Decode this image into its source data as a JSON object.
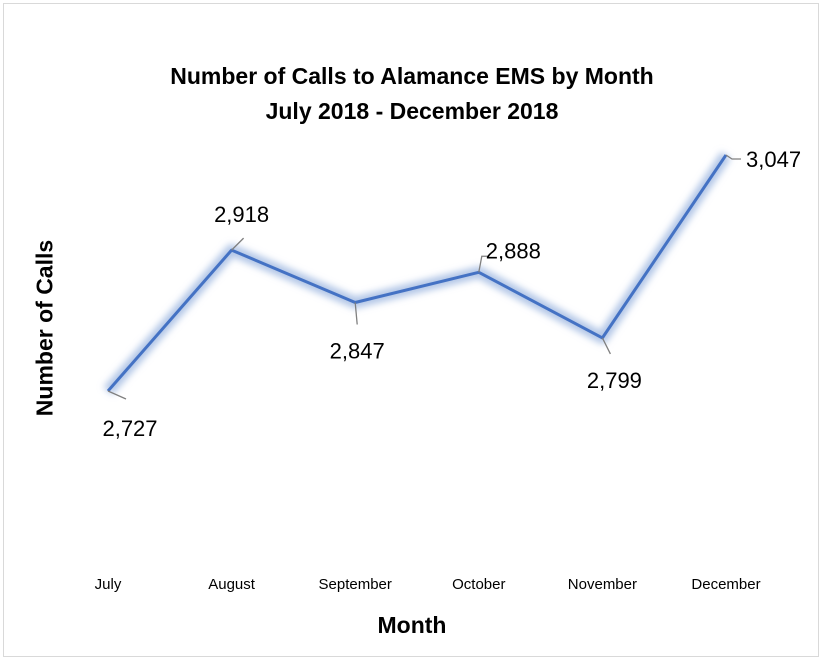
{
  "chart_data": {
    "type": "line",
    "title": "Number of Calls to Alamance EMS by Month",
    "subtitle": "July 2018 - December 2018",
    "xlabel": "Month",
    "ylabel": "Number of Calls",
    "categories": [
      "July",
      "August",
      "September",
      "October",
      "November",
      "December"
    ],
    "series": [
      {
        "values": [
          2727,
          2918,
          2847,
          2888,
          2799,
          3047
        ],
        "labels": [
          "2,727",
          "2,918",
          "2,847",
          "2,888",
          "2,799",
          "3,047"
        ]
      }
    ],
    "line_color": "#4472c4",
    "glow_color": "#b4c7e7",
    "leader_color": "#7f7f7f",
    "grid": false,
    "legend": "none"
  }
}
